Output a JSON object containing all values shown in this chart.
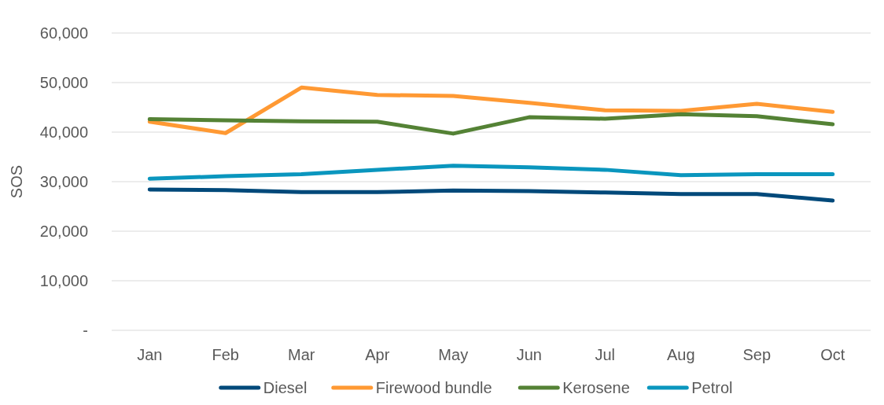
{
  "chart_data": {
    "type": "line",
    "ylabel": "SOS",
    "categories": [
      "Jan",
      "Feb",
      "Mar",
      "Apr",
      "May",
      "Jun",
      "Jul",
      "Aug",
      "Sep",
      "Oct"
    ],
    "series": [
      {
        "name": "Diesel",
        "color": "#00497a",
        "values": [
          28400,
          28300,
          27900,
          27900,
          28200,
          28100,
          27800,
          27500,
          27500,
          26200
        ]
      },
      {
        "name": "Firewood bundle",
        "color": "#ff9933",
        "values": [
          42100,
          39800,
          49000,
          47500,
          47300,
          45900,
          44400,
          44300,
          45700,
          44100
        ]
      },
      {
        "name": "Kerosene",
        "color": "#548235",
        "values": [
          42600,
          42400,
          42200,
          42100,
          39700,
          43000,
          42700,
          43600,
          43200,
          41600
        ]
      },
      {
        "name": "Petrol",
        "color": "#0a96be",
        "values": [
          30600,
          31100,
          31500,
          32400,
          33200,
          32900,
          32400,
          31300,
          31500,
          31500
        ]
      }
    ],
    "ylim": [
      0,
      60000
    ],
    "yticks": [
      {
        "value": 0,
        "label": "-"
      },
      {
        "value": 10000,
        "label": "10,000"
      },
      {
        "value": 20000,
        "label": "20,000"
      },
      {
        "value": 30000,
        "label": "30,000"
      },
      {
        "value": 40000,
        "label": "40,000"
      },
      {
        "value": 50000,
        "label": "50,000"
      },
      {
        "value": 60000,
        "label": "60,000"
      }
    ],
    "grid": "y",
    "legend": "bottom",
    "line_style": "solid",
    "marker": "none"
  }
}
